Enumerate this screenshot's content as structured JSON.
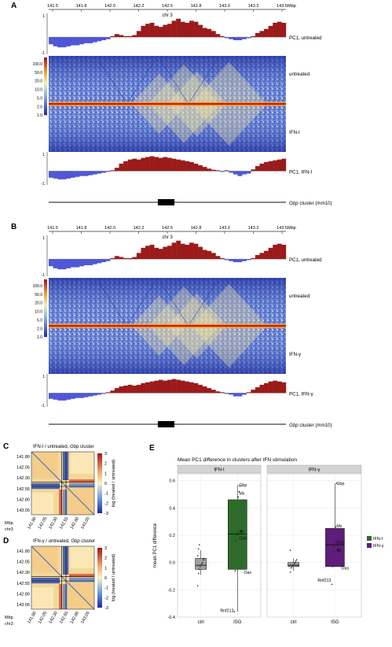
{
  "chart_data": [
    {
      "panel": "A",
      "type": "area",
      "axis_ticks": [
        "141.5",
        "141.8",
        "142.0",
        "142.2",
        "142.5",
        "142.8",
        "143.0",
        "143.2",
        "143.5"
      ],
      "axis_unit": "Mbp",
      "axis_label": "chr 3",
      "pc1_ticks": [
        "1",
        "-1"
      ],
      "pc1_untreated_label": "PC1, untreated",
      "pc1_treated_label": "PC1, IFN-I",
      "heatmap_top_label": "untreated",
      "heatmap_bottom_label": "IFN-I",
      "colorbar_ticks": [
        "100.0",
        "50.0",
        "20.0",
        "10.0",
        "5.0",
        "2.0",
        "1.0"
      ],
      "gene_track_label": "Gbp",
      "gene_track_suffix": " cluster (mm10)",
      "pc1_untreated": [
        -0.35,
        -0.45,
        -0.5,
        -0.5,
        -0.45,
        -0.4,
        -0.4,
        -0.35,
        -0.3,
        -0.3,
        -0.25,
        -0.2,
        -0.15,
        -0.1,
        0.05,
        0.15,
        0.1,
        0.05,
        0.05,
        0.1,
        0.3,
        0.55,
        0.65,
        0.7,
        0.55,
        0.5,
        0.6,
        0.65,
        0.8,
        0.9,
        0.75,
        0.7,
        0.8,
        0.75,
        0.6,
        0.45,
        0.4,
        0.3,
        0.15,
        0.05,
        -0.05,
        -0.1,
        -0.15,
        -0.15,
        -0.1,
        -0.05,
        0.05,
        0.2,
        0.3,
        0.4,
        0.55,
        0.7,
        0.75,
        0.7
      ],
      "pc1_treated": [
        -0.4,
        -0.45,
        -0.5,
        -0.5,
        -0.45,
        -0.4,
        -0.35,
        -0.3,
        -0.3,
        -0.25,
        -0.2,
        -0.15,
        -0.1,
        -0.05,
        0.05,
        0.2,
        0.45,
        0.6,
        0.7,
        0.75,
        0.7,
        0.8,
        0.85,
        0.9,
        0.85,
        0.8,
        0.85,
        0.8,
        0.75,
        0.7,
        0.65,
        0.6,
        0.55,
        0.45,
        0.35,
        0.25,
        0.15,
        0.08,
        0.05,
        -0.05,
        0.05,
        -0.1,
        -0.2,
        -0.3,
        -0.2,
        -0.15,
        0.1,
        0.3,
        0.45,
        0.55,
        0.6,
        0.65,
        0.7,
        0.75
      ]
    },
    {
      "panel": "B",
      "type": "area",
      "axis_ticks": [
        "141.5",
        "141.8",
        "142.0",
        "142.2",
        "142.5",
        "142.8",
        "143.0",
        "143.2",
        "143.5"
      ],
      "axis_unit": "Mbp",
      "axis_label": "chr 3",
      "pc1_ticks": [
        "1",
        "-1"
      ],
      "pc1_untreated_label": "PC1, untreated",
      "pc1_treated_label": "PC1, IFN-γ",
      "heatmap_top_label": "untreated",
      "heatmap_bottom_label": "IFN-γ",
      "colorbar_ticks": [
        "100.0",
        "50.0",
        "20.0",
        "10.0",
        "5.0",
        "2.0",
        "1.0"
      ],
      "gene_track_label": "Gbp",
      "gene_track_suffix": " cluster (mm10)",
      "pc1_untreated": [
        -0.35,
        -0.45,
        -0.5,
        -0.5,
        -0.45,
        -0.4,
        -0.4,
        -0.35,
        -0.3,
        -0.3,
        -0.25,
        -0.2,
        -0.15,
        -0.1,
        0.05,
        0.15,
        0.1,
        0.05,
        0.05,
        0.1,
        0.3,
        0.55,
        0.65,
        0.7,
        0.55,
        0.5,
        0.6,
        0.65,
        0.8,
        0.9,
        0.75,
        0.7,
        0.8,
        0.75,
        0.6,
        0.45,
        0.4,
        0.3,
        0.15,
        0.05,
        -0.05,
        -0.1,
        -0.15,
        -0.15,
        -0.1,
        -0.05,
        0.05,
        0.2,
        0.3,
        0.4,
        0.55,
        0.7,
        0.75,
        0.7
      ],
      "pc1_treated": [
        -0.35,
        -0.4,
        -0.45,
        -0.45,
        -0.4,
        -0.35,
        -0.3,
        -0.3,
        -0.25,
        -0.2,
        -0.15,
        -0.1,
        -0.05,
        0.05,
        0.15,
        0.3,
        0.4,
        0.45,
        0.5,
        0.45,
        0.5,
        0.6,
        0.65,
        0.7,
        0.75,
        0.8,
        0.75,
        0.8,
        0.85,
        0.8,
        0.75,
        0.7,
        0.65,
        0.6,
        0.5,
        0.4,
        0.3,
        0.2,
        0.1,
        0.05,
        -0.05,
        -0.1,
        -0.2,
        -0.2,
        -0.1,
        0.05,
        0.2,
        0.35,
        0.5,
        0.6,
        0.7,
        0.75,
        0.7,
        0.65
      ]
    },
    {
      "panel": "C",
      "type": "heatmap",
      "title_prefix": "IFN-I / untreated, ",
      "title_italic": "Gbp",
      "title_suffix": " cluster",
      "y_ticks": [
        "141.80",
        "142.05",
        "142.30",
        "142.55",
        "142.80",
        "143.05"
      ],
      "x_ticks": [
        "141.80",
        "142.05",
        "142.30",
        "142.55",
        "142.80",
        "143.05"
      ],
      "unit_label": "Mbp",
      "chrom_label": "chr3",
      "colorbar_ticks": [
        "3",
        "2",
        "1",
        "0",
        "-1",
        "-2",
        "-3"
      ],
      "colorbar_label": "log (treated / untreated)"
    },
    {
      "panel": "D",
      "type": "heatmap",
      "title_prefix": "IFN-γ / untreated, ",
      "title_italic": "Gbp",
      "title_suffix": " cluster",
      "y_ticks": [
        "141.80",
        "142.05",
        "142.30",
        "142.55",
        "142.80",
        "143.05"
      ],
      "x_ticks": [
        "141.80",
        "142.05",
        "142.30",
        "142.55",
        "142.80",
        "143.05"
      ],
      "unit_label": "Mbp",
      "chrom_label": "chr3",
      "colorbar_ticks": [
        "3",
        "2",
        "1",
        "0",
        "-1",
        "-2",
        "-3"
      ],
      "colorbar_label": "log (treated / untreated)"
    },
    {
      "panel": "E",
      "type": "box",
      "title": "Mean PC1 difference in clusters after IFN stimulation",
      "ylabel": "mean PC1 difference",
      "ylim": [
        -0.4,
        0.65
      ],
      "y_ticks": [
        0.6,
        0.4,
        0.2,
        0.0,
        -0.2,
        -0.4
      ],
      "y_tick_labels": [
        "0.6",
        "0.4",
        "0.2",
        "0.0",
        "-0.2",
        "-0.4"
      ],
      "facets": [
        {
          "name": "IFN-I",
          "boxes": [
            {
              "category": "ctrl",
              "min": -0.09,
              "q1": -0.05,
              "median": -0.02,
              "q3": 0.03,
              "max": 0.09,
              "color": "#a0a0a0",
              "points": [
                -0.17,
                -0.08,
                -0.05,
                -0.03,
                -0.02,
                -0.01,
                0.0,
                0.02,
                0.03,
                0.05,
                0.1,
                0.13
              ]
            },
            {
              "category": "ISG",
              "min": -0.36,
              "q1": -0.05,
              "median": 0.21,
              "q3": 0.46,
              "max": 0.57,
              "color": "#2e6b2a",
              "points": [
                -0.36,
                -0.06,
                0.16,
                0.2,
                0.22,
                0.48,
                0.52,
                0.56
              ]
            }
          ],
          "annotations": [
            {
              "label": "Gbp",
              "x": "ISG",
              "y": 0.57
            },
            {
              "label": "Mx",
              "x": "ISG",
              "y": 0.51
            },
            {
              "label": "Ifit",
              "x": "ISG",
              "y": 0.23
            },
            {
              "label": "Cxcl",
              "x": "ISG",
              "y": 0.18
            },
            {
              "label": "Oas",
              "x": "ISG",
              "y": -0.07
            },
            {
              "label": "Rnf213",
              "x": "ISG",
              "y": -0.35
            }
          ]
        },
        {
          "name": "IFN-γ",
          "boxes": [
            {
              "category": "ctrl",
              "min": -0.06,
              "q1": -0.03,
              "median": -0.02,
              "q3": 0.0,
              "max": 0.03,
              "color": "#a0a0a0",
              "points": [
                -0.07,
                -0.04,
                -0.03,
                -0.02,
                -0.02,
                -0.01,
                0.0,
                0.01,
                0.02,
                0.09
              ]
            },
            {
              "category": "ISG",
              "min": -0.03,
              "q1": -0.03,
              "median": 0.13,
              "q3": 0.25,
              "max": 0.58,
              "color": "#5c1e7a",
              "points": [
                -0.16,
                -0.03,
                0.08,
                0.12,
                0.15,
                0.26,
                0.58
              ]
            }
          ],
          "annotations": [
            {
              "label": "Gbp",
              "x": "ISG",
              "y": 0.58
            },
            {
              "label": "Mx",
              "x": "ISG",
              "y": 0.27
            },
            {
              "label": "Cxcl",
              "x": "ISG",
              "y": 0.15
            },
            {
              "label": "Ifit",
              "x": "ISG",
              "y": 0.09
            },
            {
              "label": "Oas",
              "x": "ISG",
              "y": -0.04
            },
            {
              "label": "Rnf213",
              "x": "ISG",
              "y": -0.13
            }
          ]
        }
      ],
      "legend": [
        {
          "label": "IFN-I",
          "color": "#2e6b2a"
        },
        {
          "label": "IFN-γ",
          "color": "#5c1e7a"
        }
      ],
      "legend_position": "right"
    }
  ],
  "panel_letters": [
    "A",
    "B",
    "C",
    "D",
    "E"
  ],
  "colors": {
    "pc1_positive": "#9b1b1b",
    "pc1_negative": "#4f57d4",
    "heat_low": "#1a2a9a",
    "heat_high": "#b01010",
    "panel_strip": "#d4d4d4"
  }
}
